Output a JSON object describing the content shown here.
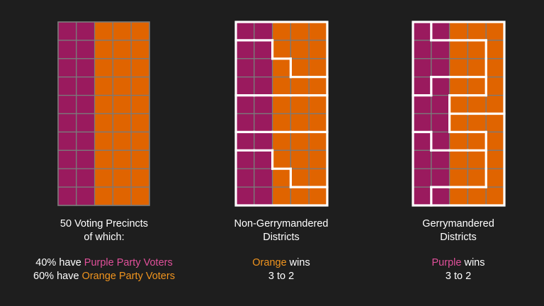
{
  "colors": {
    "background": "#1e1e1e",
    "purple_cell": "#9a1a5e",
    "orange_cell": "#e06400",
    "grid_line": "#7a7a7a",
    "district_border": "#ffffff",
    "purple_text": "#e0509a",
    "orange_text": "#f0941e"
  },
  "precinct_grid": {
    "rows": 10,
    "cols": 5,
    "party_by_column": [
      "purple",
      "purple",
      "orange",
      "orange",
      "orange"
    ]
  },
  "panels": [
    {
      "id": "precincts",
      "districts": null,
      "caption": {
        "line1": "50 Voting Precincts",
        "line2": "of which:",
        "stat1_prefix": "40% have ",
        "stat1_party": "Purple Party Voters",
        "stat2_prefix": "60% have ",
        "stat2_party": "Orange Party Voters"
      }
    },
    {
      "id": "non-gerrymandered",
      "districts": [
        "AAAAA",
        "BBAAA",
        "BBBAA",
        "BBBBB",
        "CCCCC",
        "CCCCC",
        "DDDDD",
        "EEDDD",
        "EEEDD",
        "EEEEE"
      ],
      "caption": {
        "line1": "Non-Gerrymandered",
        "line2": "Districts",
        "winner": "Orange",
        "winner_suffix": " wins",
        "score": "3 to 2"
      }
    },
    {
      "id": "gerrymandered",
      "districts": [
        "LTTTT",
        "LLLLT",
        "LLLLT",
        "LMMMT",
        "MMTTT",
        "MMBBB",
        "NMMMB",
        "NNNNB",
        "NNNNB",
        "NBBBB"
      ],
      "caption": {
        "line1": "Gerrymandered",
        "line2": "Districts",
        "winner": "Purple",
        "winner_suffix": " wins",
        "score": "3 to 2"
      }
    }
  ]
}
